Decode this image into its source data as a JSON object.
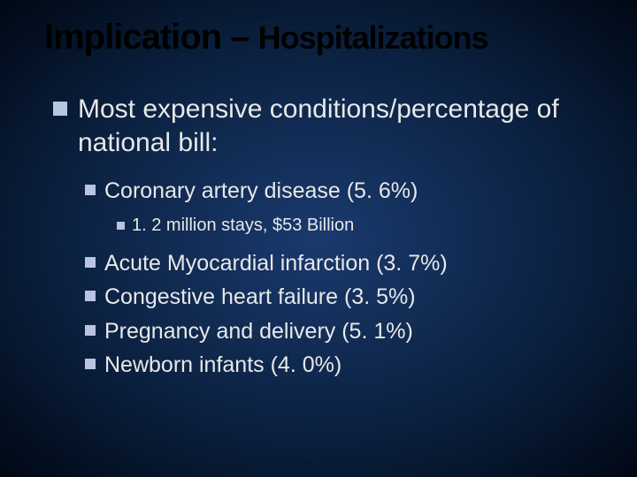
{
  "slide": {
    "background": {
      "type": "radial-gradient",
      "center_color": "#1a3a6e",
      "mid_color": "#0a1f3d",
      "outer_color": "#000814"
    },
    "title": {
      "part1": "Implication – ",
      "part2": "Hospitalizations",
      "color": "#000000",
      "fontsize_part1": 40,
      "fontsize_part2": 36,
      "weight": "bold"
    },
    "bullet_color": "#b8c4e0",
    "text_color": "#e8e8e8",
    "lvl1": {
      "text": "Most expensive conditions/percentage of national bill:",
      "fontsize": 30
    },
    "lvl2_first": {
      "text": "Coronary artery disease (5. 6%)",
      "fontsize": 25
    },
    "lvl3": {
      "text": "1. 2 million stays, $53 Billion",
      "fontsize": 20
    },
    "lvl2_rest": [
      "Acute Myocardial infarction (3. 7%)",
      "Congestive heart failure (3. 5%)",
      "Pregnancy and delivery (5. 1%)",
      "Newborn infants (4. 0%)"
    ]
  }
}
